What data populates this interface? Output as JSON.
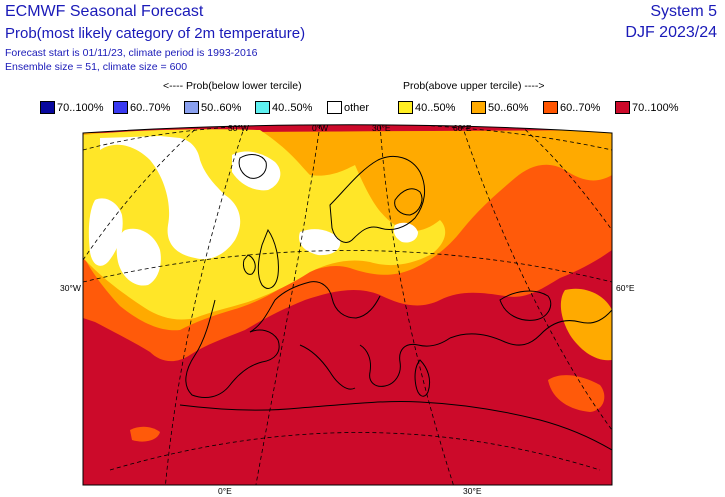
{
  "header": {
    "title": "ECMWF Seasonal Forecast",
    "subtitle": "Prob(most likely category of 2m temperature)",
    "forecast_info": "Forecast start is 01/11/23, climate period is 1993-2016",
    "ensemble_info": "Ensemble size = 51, climate size = 600",
    "system": "System 5",
    "season": "DJF 2023/24"
  },
  "legend": {
    "below_heading": "<---- Prob(below lower tercile)",
    "above_heading": "Prob(above upper tercile) ---->",
    "items": [
      {
        "label": "70..100%",
        "color": "#08089e"
      },
      {
        "label": "60..70%",
        "color": "#3a3af0"
      },
      {
        "label": "50..60%",
        "color": "#8aa0ee"
      },
      {
        "label": "40..50%",
        "color": "#5ef0f0"
      },
      {
        "label": "other",
        "color": "#ffffff"
      },
      {
        "label": "40..50%",
        "color": "#ffee22"
      },
      {
        "label": "50..60%",
        "color": "#ffaa00"
      },
      {
        "label": "60..70%",
        "color": "#ff5500"
      },
      {
        "label": "70..100%",
        "color": "#cc0a2a"
      }
    ]
  },
  "map": {
    "colors": {
      "c70": "#cc0a2a",
      "c60": "#ff5a0a",
      "c50": "#ffaa00",
      "c40": "#ffe628",
      "other": "#ffffff"
    },
    "lon_labels_top": [
      "30°W",
      "0°W",
      "30°E",
      "60°E"
    ],
    "lon_labels_bottom": [
      "0°E",
      "30°E"
    ],
    "lat_labels_left": [
      "30°W"
    ],
    "lat_labels_right": [
      "60°E"
    ]
  }
}
